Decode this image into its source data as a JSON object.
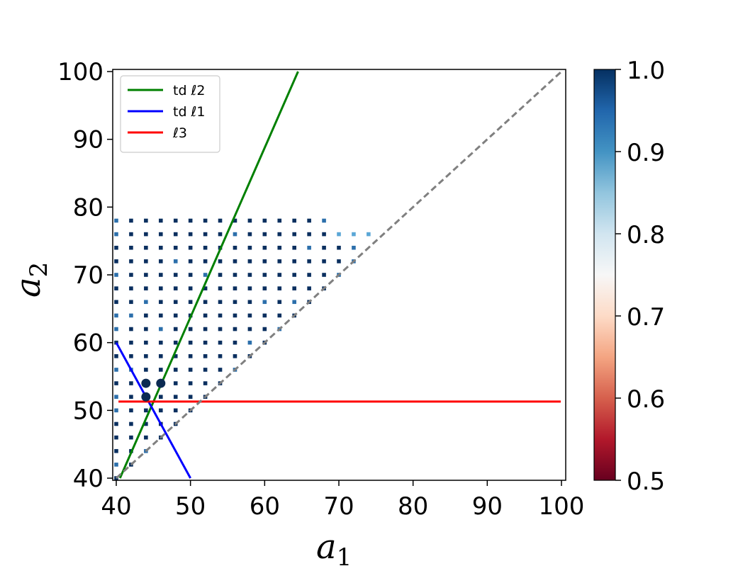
{
  "chart_data": {
    "type": "scatter",
    "xlabel": "a",
    "xlabel_sub": "1",
    "ylabel": "a",
    "ylabel_sub": "2",
    "xlim": [
      40,
      100
    ],
    "ylim": [
      40,
      100
    ],
    "x_ticks": [
      "40",
      "50",
      "60",
      "70",
      "80",
      "90",
      "100"
    ],
    "y_ticks": [
      "40",
      "50",
      "60",
      "70",
      "80",
      "90",
      "100"
    ],
    "grid": false,
    "legend_placement": "top-left",
    "colorbar": {
      "range": [
        0.5,
        1.0
      ],
      "ticks": [
        "0.5",
        "0.6",
        "0.7",
        "0.8",
        "0.9",
        "1.0"
      ],
      "colormap": "RdBu"
    },
    "series": [
      {
        "name": "td ℓ2",
        "kind": "line",
        "color": "#008000",
        "points": [
          [
            40.5,
            40
          ],
          [
            64.5,
            100
          ]
        ]
      },
      {
        "name": "td ℓ1",
        "kind": "line",
        "color": "#0000ff",
        "points": [
          [
            40,
            60
          ],
          [
            50,
            40
          ]
        ]
      },
      {
        "name": "ℓ3",
        "kind": "line",
        "color": "#ff0000",
        "points": [
          [
            40.3,
            51.3
          ],
          [
            99.9,
            51.3
          ]
        ]
      },
      {
        "name": "",
        "kind": "dashed-diagonal",
        "color": "#808080",
        "points": [
          [
            40,
            40
          ],
          [
            100,
            100
          ]
        ]
      }
    ],
    "highlight_points": [
      [
        44,
        54
      ],
      [
        46,
        54
      ],
      [
        44,
        52
      ]
    ],
    "grid_points": {
      "x_start": 40,
      "x_step": 2,
      "y_start": 40,
      "y_step": 2,
      "rows_max_x": [
        {
          "y": 40,
          "max_x": 40
        },
        {
          "y": 42,
          "max_x": 42
        },
        {
          "y": 44,
          "max_x": 44
        },
        {
          "y": 46,
          "max_x": 46
        },
        {
          "y": 48,
          "max_x": 48
        },
        {
          "y": 50,
          "max_x": 50
        },
        {
          "y": 52,
          "max_x": 52
        },
        {
          "y": 54,
          "max_x": 54
        },
        {
          "y": 56,
          "max_x": 56
        },
        {
          "y": 58,
          "max_x": 58
        },
        {
          "y": 60,
          "max_x": 60
        },
        {
          "y": 62,
          "max_x": 62
        },
        {
          "y": 64,
          "max_x": 64
        },
        {
          "y": 66,
          "max_x": 66
        },
        {
          "y": 68,
          "max_x": 68
        },
        {
          "y": 70,
          "max_x": 70
        },
        {
          "y": 72,
          "max_x": 72
        },
        {
          "y": 74,
          "max_x": 72
        },
        {
          "y": 76,
          "max_x": 74
        },
        {
          "y": 78,
          "max_x": 68
        }
      ],
      "light_points": [
        [
          40,
          42
        ],
        [
          40,
          50
        ],
        [
          40,
          52
        ],
        [
          40,
          56
        ],
        [
          40,
          62
        ],
        [
          40,
          64
        ],
        [
          40,
          70
        ],
        [
          40,
          76
        ],
        [
          40,
          78
        ],
        [
          42,
          56
        ],
        [
          42,
          64
        ],
        [
          44,
          44
        ],
        [
          44,
          66
        ],
        [
          46,
          62
        ],
        [
          48,
          72
        ],
        [
          52,
          48
        ],
        [
          52,
          70
        ],
        [
          56,
          56
        ],
        [
          56,
          76
        ],
        [
          58,
          60
        ],
        [
          60,
          66
        ],
        [
          62,
          62
        ],
        [
          64,
          66
        ],
        [
          66,
          74
        ],
        [
          68,
          78
        ],
        [
          70,
          70
        ],
        [
          70,
          76
        ],
        [
          72,
          72
        ],
        [
          72,
          74
        ],
        [
          74,
          76
        ]
      ]
    }
  }
}
